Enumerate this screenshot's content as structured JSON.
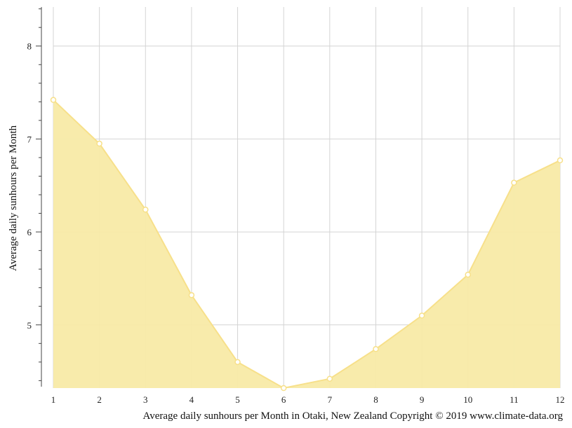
{
  "chart_data": {
    "type": "area",
    "x": [
      1,
      2,
      3,
      4,
      5,
      6,
      7,
      8,
      9,
      10,
      11,
      12
    ],
    "series": [
      {
        "values": [
          7.42,
          6.95,
          6.24,
          5.32,
          4.6,
          4.32,
          4.42,
          4.74,
          5.1,
          5.54,
          6.53,
          6.77
        ]
      }
    ],
    "xlabel": "",
    "ylabel": "Average daily sunhours per Month",
    "caption": "Average daily sunhours per Month in Otaki, New Zealand Copyright © 2019 www.climate-data.org",
    "xlim": [
      1,
      12
    ],
    "ylim": [
      4.32,
      8.42
    ],
    "yticks": [
      5,
      6,
      7,
      8
    ],
    "xticks": [
      1,
      2,
      3,
      4,
      5,
      6,
      7,
      8,
      9,
      10,
      11,
      12
    ],
    "grid": true,
    "fill_color": "#f8eaa6",
    "line_color": "#f7e08a",
    "point_color": "#ffffff"
  }
}
